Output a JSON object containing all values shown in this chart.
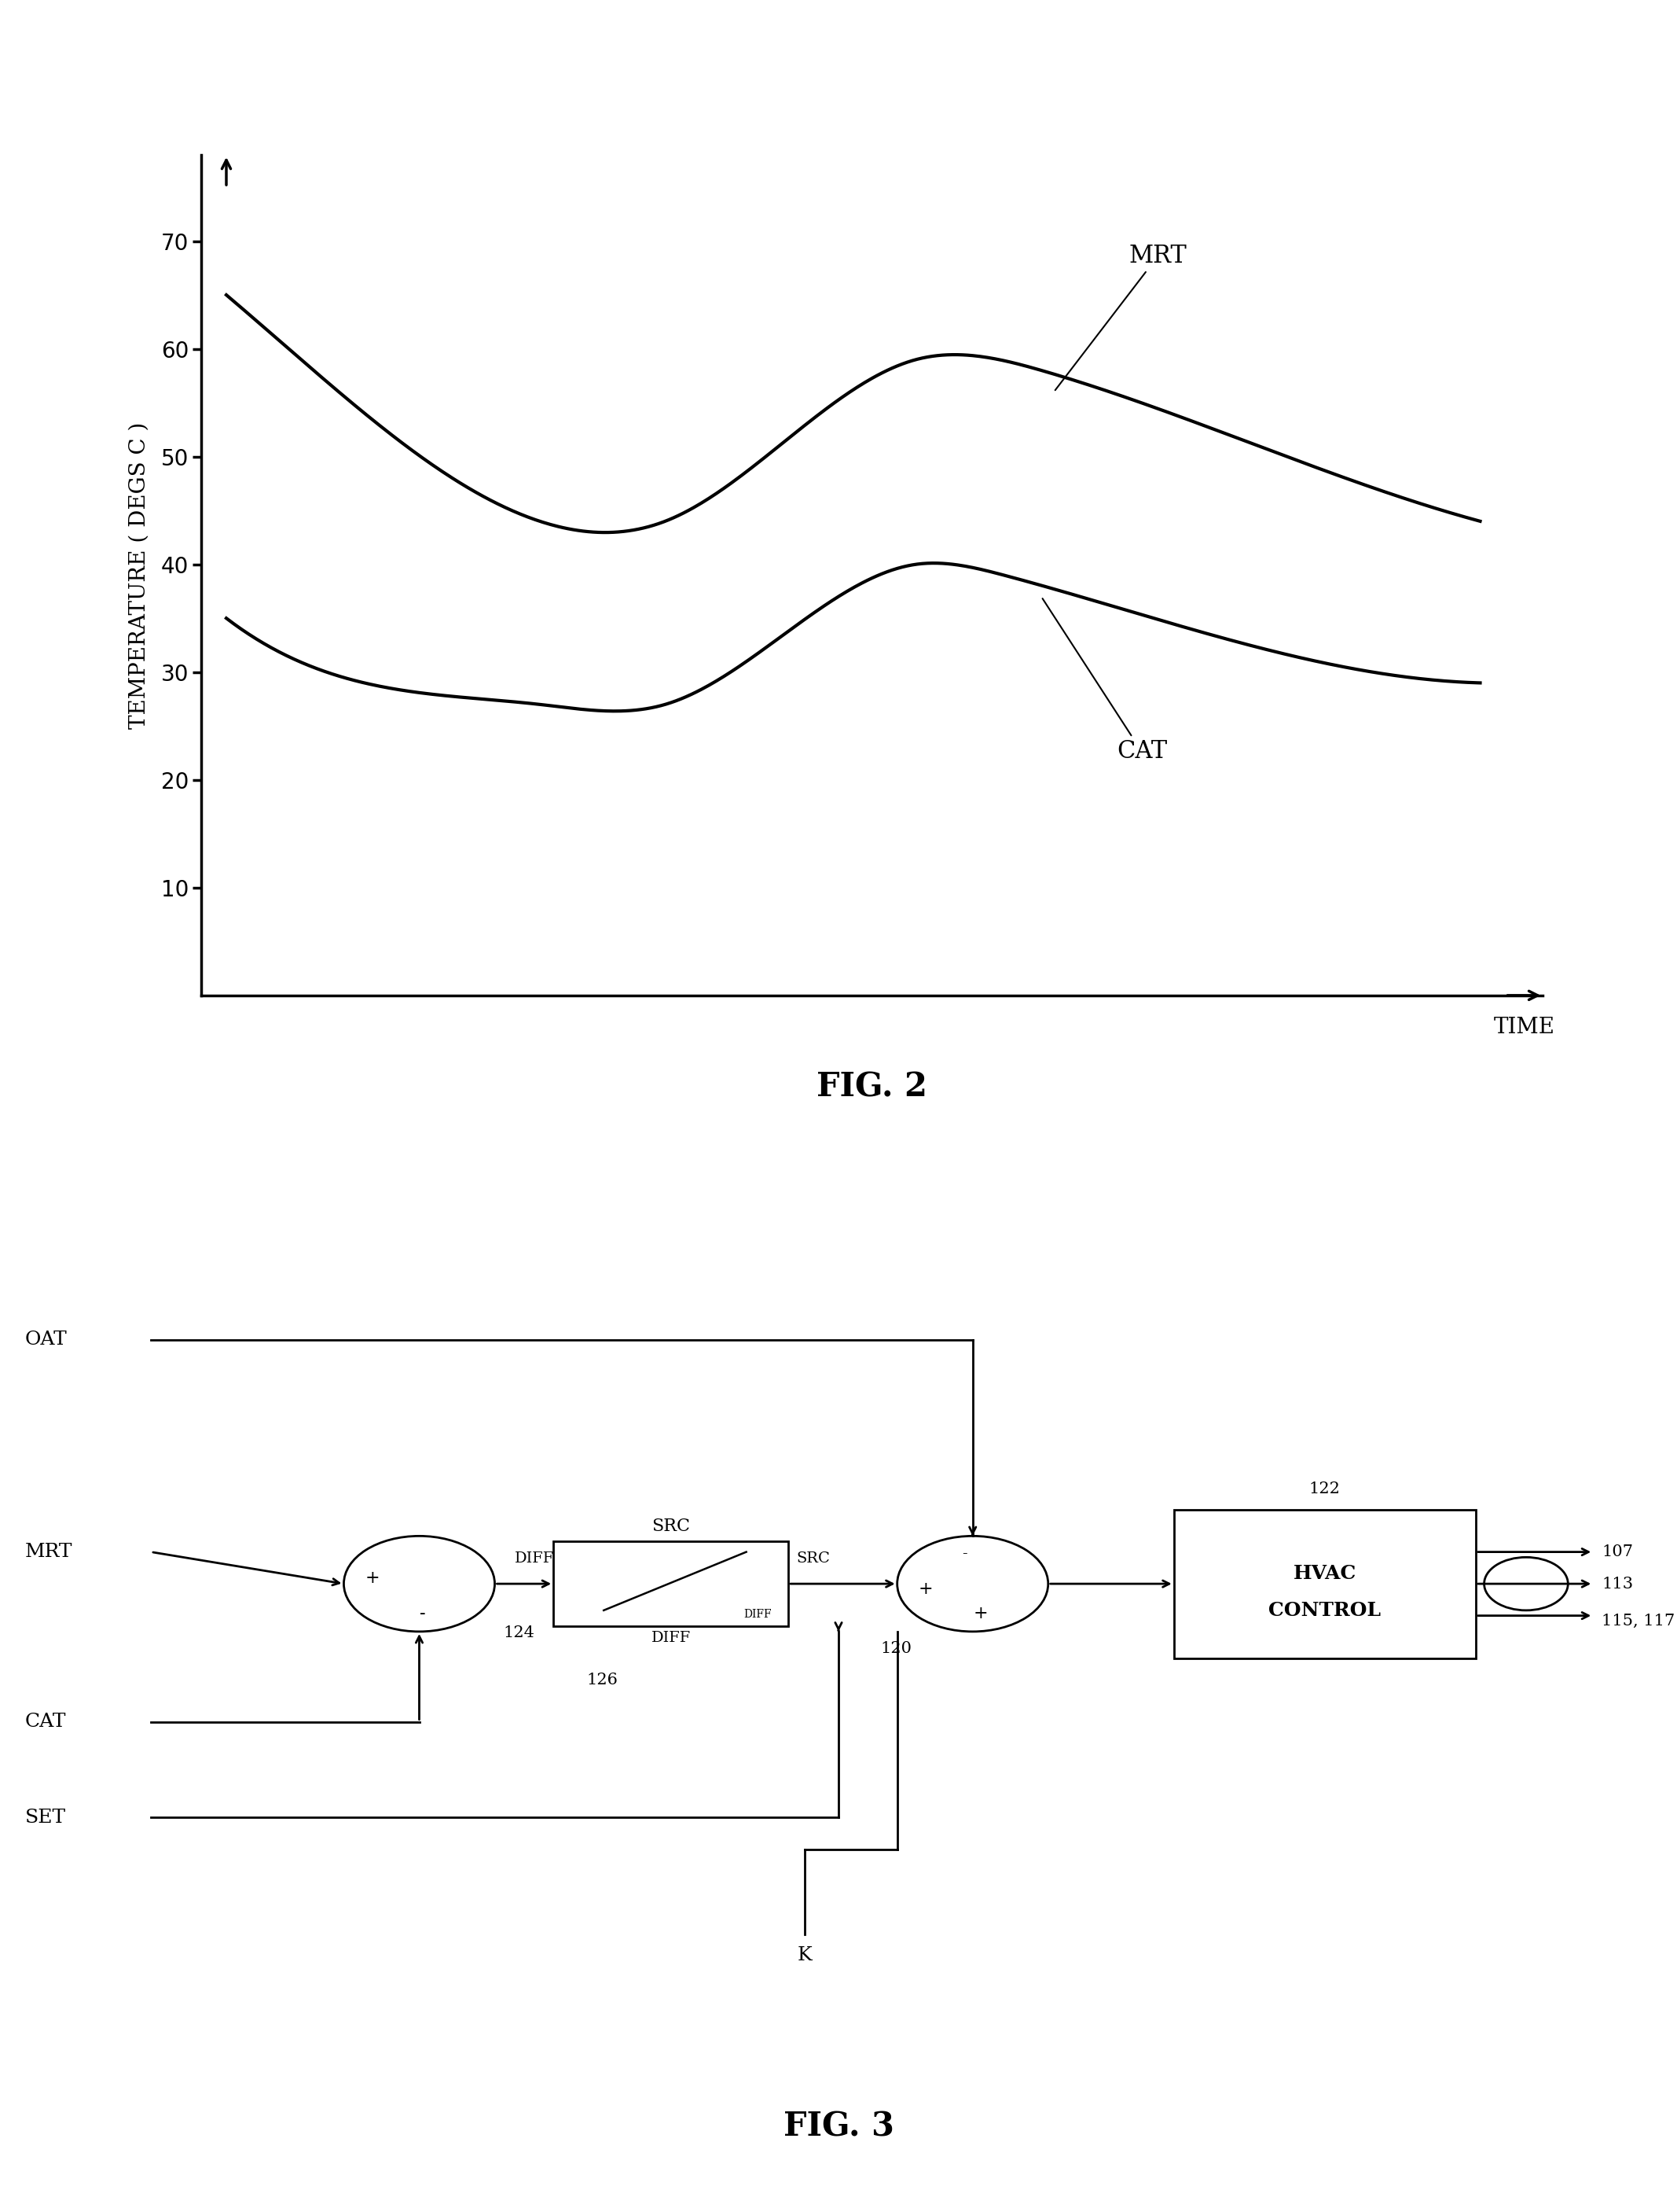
{
  "fig2": {
    "title": "FIG. 2",
    "xlabel": "TIME",
    "ylabel": "TEMPERATURE ( DEGS C )",
    "yticks": [
      10,
      20,
      30,
      40,
      50,
      60,
      70
    ],
    "ylim": [
      0,
      78
    ],
    "mrt_label": "MRT",
    "cat_label": "CAT",
    "background": "#ffffff",
    "line_color": "#000000"
  },
  "fig3": {
    "title": "FIG. 3",
    "background": "#ffffff",
    "line_color": "#000000"
  }
}
